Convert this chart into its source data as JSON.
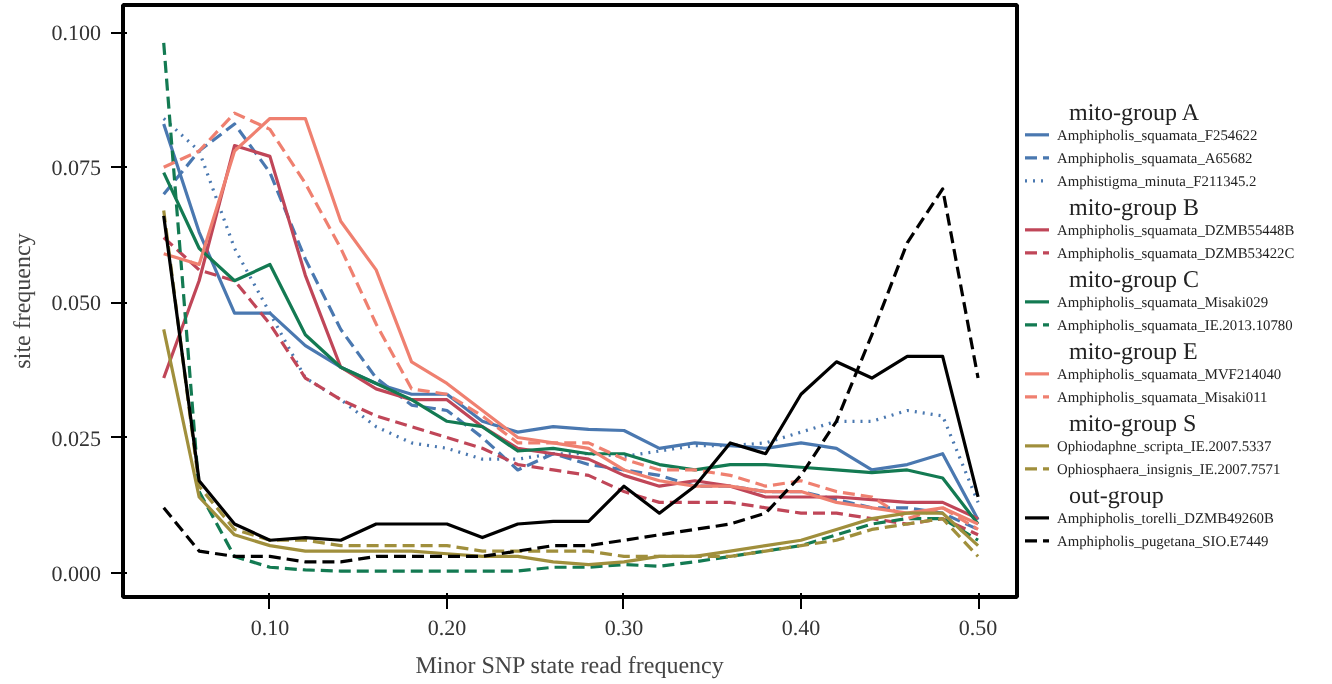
{
  "chart_data": {
    "type": "line",
    "xlabel": "Minor SNP state read frequency",
    "ylabel": "site frequency",
    "x": [
      0.04,
      0.06,
      0.08,
      0.1,
      0.12,
      0.14,
      0.16,
      0.18,
      0.2,
      0.22,
      0.24,
      0.26,
      0.28,
      0.3,
      0.32,
      0.34,
      0.36,
      0.38,
      0.4,
      0.42,
      0.44,
      0.46,
      0.48,
      0.5
    ],
    "xlim": [
      0.017,
      0.522
    ],
    "ylim": [
      -0.0045,
      0.105
    ],
    "xticks": [
      {
        "value": 0.1,
        "label": "0.10"
      },
      {
        "value": 0.2,
        "label": "0.20"
      },
      {
        "value": 0.3,
        "label": "0.30"
      },
      {
        "value": 0.4,
        "label": "0.40"
      },
      {
        "value": 0.5,
        "label": "0.50"
      }
    ],
    "yticks": [
      {
        "value": 0,
        "label": "0.000"
      },
      {
        "value": 0.025,
        "label": "0.025"
      },
      {
        "value": 0.05,
        "label": "0.050"
      },
      {
        "value": 0.075,
        "label": "0.075"
      },
      {
        "value": 0.1,
        "label": "0.100"
      }
    ],
    "grid": false,
    "legend": "right",
    "annotations": [
      "mito-group A",
      "mito-group B",
      "mito-group C",
      "mito-group E",
      "mito-group S",
      "out-group"
    ],
    "series": [
      {
        "name": "Amphipholis_squamata_F254622",
        "color": "#4a78b0",
        "line_style": "solid",
        "values": [
          0.083,
          0.063,
          0.048,
          0.048,
          0.042,
          0.038,
          0.035,
          0.033,
          0.033,
          0.028,
          0.026,
          0.027,
          0.0265,
          0.0263,
          0.023,
          0.024,
          0.0235,
          0.023,
          0.024,
          0.023,
          0.019,
          0.02,
          0.022,
          0.0098
        ]
      },
      {
        "name": "Amphipholis_squamata_A65682",
        "color": "#4a78b0",
        "line_style": "dashed",
        "values": [
          0.07,
          0.078,
          0.083,
          0.074,
          0.058,
          0.045,
          0.036,
          0.031,
          0.03,
          0.025,
          0.019,
          0.022,
          0.02,
          0.019,
          0.018,
          0.016,
          0.016,
          0.015,
          0.015,
          0.0135,
          0.012,
          0.012,
          0.011,
          0.008
        ]
      },
      {
        "name": "Amphistigma_minuta_F211345.2",
        "color": "#4a78b0",
        "line_style": "dotted",
        "values": [
          0.084,
          0.078,
          0.06,
          0.048,
          0.036,
          0.032,
          0.027,
          0.024,
          0.023,
          0.021,
          0.021,
          0.022,
          0.022,
          0.0215,
          0.0225,
          0.0235,
          0.0235,
          0.024,
          0.026,
          0.028,
          0.028,
          0.03,
          0.029,
          0.013
        ]
      },
      {
        "name": "Amphipholis_squamata_DZMB55448B",
        "color": "#c04658",
        "line_style": "solid",
        "values": [
          0.036,
          0.054,
          0.079,
          0.077,
          0.055,
          0.038,
          0.034,
          0.032,
          0.032,
          0.027,
          0.023,
          0.022,
          0.021,
          0.018,
          0.016,
          0.017,
          0.016,
          0.014,
          0.014,
          0.014,
          0.0135,
          0.013,
          0.013,
          0.01
        ]
      },
      {
        "name": "Amphipholis_squamata_DZMB53422C",
        "color": "#c04658",
        "line_style": "dashed",
        "values": [
          0.062,
          0.056,
          0.054,
          0.046,
          0.036,
          0.032,
          0.029,
          0.027,
          0.025,
          0.023,
          0.02,
          0.019,
          0.018,
          0.015,
          0.013,
          0.013,
          0.013,
          0.012,
          0.011,
          0.011,
          0.01,
          0.009,
          0.01,
          0.007
        ]
      },
      {
        "name": "Amphipholis_squamata_Misaki029",
        "color": "#137a52",
        "line_style": "solid",
        "values": [
          0.074,
          0.06,
          0.054,
          0.057,
          0.044,
          0.038,
          0.035,
          0.032,
          0.028,
          0.027,
          0.0225,
          0.023,
          0.022,
          0.022,
          0.02,
          0.019,
          0.02,
          0.02,
          0.0195,
          0.019,
          0.0185,
          0.019,
          0.0175,
          0.009
        ]
      },
      {
        "name": "Amphipholis_squamata_IE.2013.10780",
        "color": "#137a52",
        "line_style": "dashed",
        "values": [
          0.098,
          0.015,
          0.003,
          0.001,
          0.0005,
          0.0003,
          0.0003,
          0.0003,
          0.0003,
          0.0003,
          0.0003,
          0.001,
          0.001,
          0.0015,
          0.0012,
          0.002,
          0.003,
          0.004,
          0.005,
          0.007,
          0.009,
          0.01,
          0.01,
          0.006
        ]
      },
      {
        "name": "Amphipholis_squamata_MVF214040",
        "color": "#ef8070",
        "line_style": "solid",
        "values": [
          0.059,
          0.057,
          0.078,
          0.084,
          0.084,
          0.065,
          0.056,
          0.039,
          0.035,
          0.03,
          0.025,
          0.024,
          0.023,
          0.019,
          0.017,
          0.016,
          0.016,
          0.015,
          0.015,
          0.013,
          0.012,
          0.011,
          0.012,
          0.009
        ]
      },
      {
        "name": "Amphipholis_squamata_Misaki011",
        "color": "#ef8070",
        "line_style": "dashed",
        "values": [
          0.075,
          0.078,
          0.085,
          0.082,
          0.072,
          0.06,
          0.046,
          0.034,
          0.033,
          0.029,
          0.024,
          0.024,
          0.024,
          0.021,
          0.019,
          0.019,
          0.018,
          0.016,
          0.017,
          0.015,
          0.014,
          0.01,
          0.012,
          0.008
        ]
      },
      {
        "name": "Ophiodaphne_scripta_IE.2007.5337",
        "color": "#a08f3c",
        "line_style": "solid",
        "values": [
          0.045,
          0.014,
          0.007,
          0.005,
          0.004,
          0.004,
          0.004,
          0.004,
          0.0035,
          0.003,
          0.003,
          0.002,
          0.0015,
          0.002,
          0.003,
          0.003,
          0.004,
          0.005,
          0.006,
          0.008,
          0.01,
          0.011,
          0.011,
          0.005
        ]
      },
      {
        "name": "Ophiosphaera_insignis_IE.2007.7571",
        "color": "#a08f3c",
        "line_style": "dashed",
        "values": [
          0.067,
          0.016,
          0.008,
          0.006,
          0.006,
          0.005,
          0.005,
          0.005,
          0.005,
          0.004,
          0.004,
          0.004,
          0.004,
          0.003,
          0.003,
          0.003,
          0.003,
          0.004,
          0.005,
          0.006,
          0.008,
          0.009,
          0.01,
          0.003
        ]
      },
      {
        "name": "Amphipholis_torelli_DZMB49260B",
        "color": "#000000",
        "line_style": "solid",
        "values": [
          0.066,
          0.017,
          0.009,
          0.006,
          0.0065,
          0.006,
          0.009,
          0.009,
          0.009,
          0.0065,
          0.009,
          0.0095,
          0.0095,
          0.016,
          0.011,
          0.016,
          0.024,
          0.022,
          0.033,
          0.039,
          0.036,
          0.04,
          0.04,
          0.014
        ]
      },
      {
        "name": "Amphipholis_pugetana_SIO.E7449",
        "color": "#000000",
        "line_style": "dashed",
        "values": [
          0.012,
          0.004,
          0.003,
          0.003,
          0.002,
          0.002,
          0.003,
          0.003,
          0.003,
          0.003,
          0.004,
          0.005,
          0.005,
          0.006,
          0.007,
          0.008,
          0.009,
          0.011,
          0.018,
          0.028,
          0.044,
          0.061,
          0.071,
          0.036
        ]
      }
    ]
  }
}
